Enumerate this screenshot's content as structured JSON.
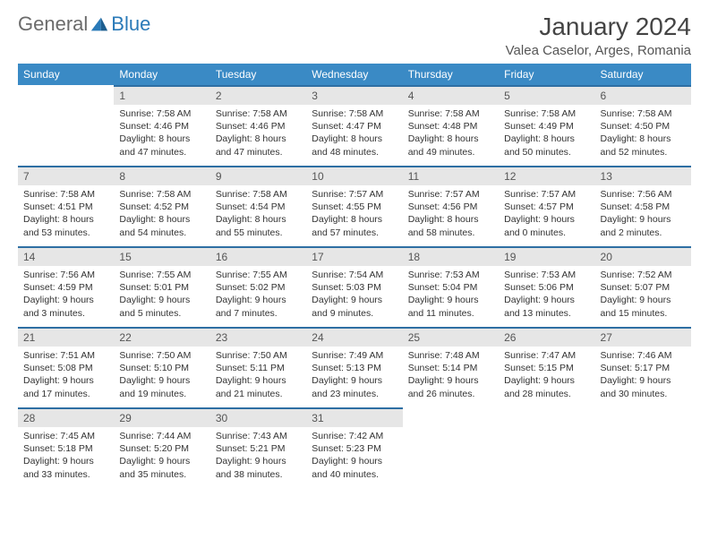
{
  "brand": {
    "text1": "General",
    "text2": "Blue"
  },
  "title": "January 2024",
  "location": "Valea Caselor, Arges, Romania",
  "colors": {
    "header_bg": "#3a8ac5",
    "header_text": "#ffffff",
    "daynum_bg": "#e6e6e6",
    "daynum_border": "#2e6fa3",
    "text": "#333333",
    "brand_gray": "#6b6b6b",
    "brand_blue": "#2a7ab8"
  },
  "weekdays": [
    "Sunday",
    "Monday",
    "Tuesday",
    "Wednesday",
    "Thursday",
    "Friday",
    "Saturday"
  ],
  "first_day_index": 1,
  "days": [
    {
      "n": 1,
      "sunrise": "7:58 AM",
      "sunset": "4:46 PM",
      "daylight": "8 hours and 47 minutes."
    },
    {
      "n": 2,
      "sunrise": "7:58 AM",
      "sunset": "4:46 PM",
      "daylight": "8 hours and 47 minutes."
    },
    {
      "n": 3,
      "sunrise": "7:58 AM",
      "sunset": "4:47 PM",
      "daylight": "8 hours and 48 minutes."
    },
    {
      "n": 4,
      "sunrise": "7:58 AM",
      "sunset": "4:48 PM",
      "daylight": "8 hours and 49 minutes."
    },
    {
      "n": 5,
      "sunrise": "7:58 AM",
      "sunset": "4:49 PM",
      "daylight": "8 hours and 50 minutes."
    },
    {
      "n": 6,
      "sunrise": "7:58 AM",
      "sunset": "4:50 PM",
      "daylight": "8 hours and 52 minutes."
    },
    {
      "n": 7,
      "sunrise": "7:58 AM",
      "sunset": "4:51 PM",
      "daylight": "8 hours and 53 minutes."
    },
    {
      "n": 8,
      "sunrise": "7:58 AM",
      "sunset": "4:52 PM",
      "daylight": "8 hours and 54 minutes."
    },
    {
      "n": 9,
      "sunrise": "7:58 AM",
      "sunset": "4:54 PM",
      "daylight": "8 hours and 55 minutes."
    },
    {
      "n": 10,
      "sunrise": "7:57 AM",
      "sunset": "4:55 PM",
      "daylight": "8 hours and 57 minutes."
    },
    {
      "n": 11,
      "sunrise": "7:57 AM",
      "sunset": "4:56 PM",
      "daylight": "8 hours and 58 minutes."
    },
    {
      "n": 12,
      "sunrise": "7:57 AM",
      "sunset": "4:57 PM",
      "daylight": "9 hours and 0 minutes."
    },
    {
      "n": 13,
      "sunrise": "7:56 AM",
      "sunset": "4:58 PM",
      "daylight": "9 hours and 2 minutes."
    },
    {
      "n": 14,
      "sunrise": "7:56 AM",
      "sunset": "4:59 PM",
      "daylight": "9 hours and 3 minutes."
    },
    {
      "n": 15,
      "sunrise": "7:55 AM",
      "sunset": "5:01 PM",
      "daylight": "9 hours and 5 minutes."
    },
    {
      "n": 16,
      "sunrise": "7:55 AM",
      "sunset": "5:02 PM",
      "daylight": "9 hours and 7 minutes."
    },
    {
      "n": 17,
      "sunrise": "7:54 AM",
      "sunset": "5:03 PM",
      "daylight": "9 hours and 9 minutes."
    },
    {
      "n": 18,
      "sunrise": "7:53 AM",
      "sunset": "5:04 PM",
      "daylight": "9 hours and 11 minutes."
    },
    {
      "n": 19,
      "sunrise": "7:53 AM",
      "sunset": "5:06 PM",
      "daylight": "9 hours and 13 minutes."
    },
    {
      "n": 20,
      "sunrise": "7:52 AM",
      "sunset": "5:07 PM",
      "daylight": "9 hours and 15 minutes."
    },
    {
      "n": 21,
      "sunrise": "7:51 AM",
      "sunset": "5:08 PM",
      "daylight": "9 hours and 17 minutes."
    },
    {
      "n": 22,
      "sunrise": "7:50 AM",
      "sunset": "5:10 PM",
      "daylight": "9 hours and 19 minutes."
    },
    {
      "n": 23,
      "sunrise": "7:50 AM",
      "sunset": "5:11 PM",
      "daylight": "9 hours and 21 minutes."
    },
    {
      "n": 24,
      "sunrise": "7:49 AM",
      "sunset": "5:13 PM",
      "daylight": "9 hours and 23 minutes."
    },
    {
      "n": 25,
      "sunrise": "7:48 AM",
      "sunset": "5:14 PM",
      "daylight": "9 hours and 26 minutes."
    },
    {
      "n": 26,
      "sunrise": "7:47 AM",
      "sunset": "5:15 PM",
      "daylight": "9 hours and 28 minutes."
    },
    {
      "n": 27,
      "sunrise": "7:46 AM",
      "sunset": "5:17 PM",
      "daylight": "9 hours and 30 minutes."
    },
    {
      "n": 28,
      "sunrise": "7:45 AM",
      "sunset": "5:18 PM",
      "daylight": "9 hours and 33 minutes."
    },
    {
      "n": 29,
      "sunrise": "7:44 AM",
      "sunset": "5:20 PM",
      "daylight": "9 hours and 35 minutes."
    },
    {
      "n": 30,
      "sunrise": "7:43 AM",
      "sunset": "5:21 PM",
      "daylight": "9 hours and 38 minutes."
    },
    {
      "n": 31,
      "sunrise": "7:42 AM",
      "sunset": "5:23 PM",
      "daylight": "9 hours and 40 minutes."
    }
  ],
  "labels": {
    "sunrise": "Sunrise:",
    "sunset": "Sunset:",
    "daylight": "Daylight:"
  }
}
